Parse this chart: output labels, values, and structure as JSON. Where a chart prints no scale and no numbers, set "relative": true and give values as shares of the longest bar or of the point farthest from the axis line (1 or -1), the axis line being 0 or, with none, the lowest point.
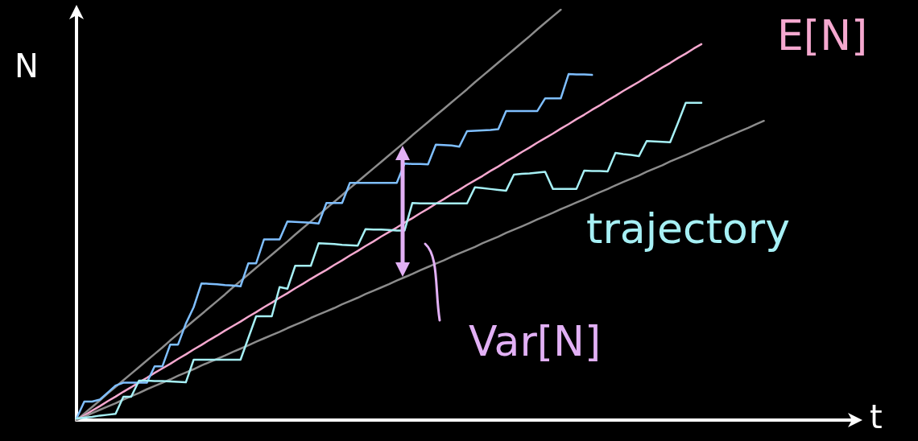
{
  "chart_data": {
    "type": "line",
    "relative": true,
    "xlabel": "t",
    "ylabel": "N",
    "marker": "none",
    "annotations": [
      "Var[N]"
    ],
    "categories": [
      null,
      null,
      null,
      null,
      null,
      null,
      null,
      null,
      null,
      null,
      null,
      null,
      null,
      null,
      null,
      null,
      null,
      null,
      null,
      null,
      null,
      null,
      null,
      null,
      null,
      null,
      null,
      null,
      null,
      null,
      null,
      null,
      null,
      null,
      null,
      null,
      null,
      null,
      null,
      null,
      null,
      null,
      null,
      null,
      null,
      null,
      null,
      null,
      null,
      null,
      null,
      null,
      null,
      null,
      null,
      null,
      null,
      null,
      null,
      null,
      null,
      null,
      null,
      null,
      null,
      null,
      null,
      null,
      null,
      null,
      null,
      null,
      null,
      null,
      null,
      null,
      null,
      null,
      null,
      null,
      null,
      null,
      null,
      null,
      null,
      null,
      null,
      null,
      null,
      null,
      null,
      null,
      null,
      null,
      null,
      null,
      null,
      null,
      null,
      null,
      null
    ],
    "series": [
      {
        "color": "#8c8c8c",
        "values": [
          0,
          0.016,
          0.032,
          0.048,
          0.065,
          0.081,
          0.097,
          0.113,
          0.129,
          0.145,
          0.161,
          0.177,
          0.194,
          0.21,
          0.226,
          0.242,
          0.258,
          0.274,
          0.29,
          0.306,
          0.323,
          0.339,
          0.355,
          0.371,
          0.387,
          0.403,
          0.419,
          0.435,
          0.452,
          0.468,
          0.484,
          0.5,
          0.516,
          0.532,
          0.548,
          0.565,
          0.581,
          0.597,
          0.613,
          0.629,
          0.645,
          0.661,
          0.677,
          0.694,
          0.71,
          0.726,
          0.742,
          0.758,
          0.774,
          0.79,
          0.806,
          0.823,
          0.839,
          0.855,
          0.871,
          0.887,
          0.903,
          0.919,
          0.935,
          0.952,
          0.968,
          0.984,
          1,
          null,
          null,
          null,
          null,
          null,
          null,
          null,
          null,
          null,
          null,
          null,
          null,
          null,
          null,
          null,
          null,
          null,
          null,
          null,
          null,
          null,
          null,
          null,
          null,
          null,
          null,
          null,
          null,
          null,
          null,
          null,
          null,
          null,
          null,
          null,
          null,
          null,
          null
        ]
      },
      {
        "name": "E[N]",
        "color": "#f5a8cf",
        "values": [
          0,
          0.011,
          0.023,
          0.034,
          0.046,
          0.057,
          0.069,
          0.08,
          0.092,
          0.103,
          0.115,
          0.126,
          0.137,
          0.149,
          0.16,
          0.172,
          0.183,
          0.195,
          0.206,
          0.218,
          0.229,
          0.24,
          0.252,
          0.263,
          0.275,
          0.286,
          0.298,
          0.309,
          0.321,
          0.332,
          0.344,
          0.355,
          0.366,
          0.378,
          0.389,
          0.401,
          0.412,
          0.424,
          0.435,
          0.447,
          0.458,
          0.469,
          0.481,
          0.492,
          0.504,
          0.515,
          0.527,
          0.538,
          0.55,
          0.561,
          0.573,
          0.584,
          0.595,
          0.607,
          0.618,
          0.63,
          0.641,
          0.653,
          0.664,
          0.676,
          0.687,
          0.698,
          0.71,
          0.721,
          0.733,
          0.744,
          0.756,
          0.767,
          0.779,
          0.79,
          0.802,
          0.813,
          0.824,
          0.836,
          0.847,
          0.859,
          0.87,
          0.882,
          0.893,
          0.905,
          0.916,
          null,
          null,
          null,
          null,
          null,
          null,
          null,
          null,
          null,
          null,
          null,
          null,
          null,
          null,
          null,
          null,
          null,
          null,
          null,
          null
        ]
      },
      {
        "color": "#8c8c8c",
        "values": [
          0,
          0.008,
          0.017,
          0.025,
          0.033,
          0.041,
          0.05,
          0.058,
          0.066,
          0.075,
          0.083,
          0.091,
          0.099,
          0.108,
          0.116,
          0.124,
          0.133,
          0.141,
          0.149,
          0.157,
          0.166,
          0.174,
          0.182,
          0.191,
          0.199,
          0.207,
          0.215,
          0.224,
          0.232,
          0.24,
          0.249,
          0.257,
          0.265,
          0.273,
          0.282,
          0.29,
          0.298,
          0.307,
          0.315,
          0.323,
          0.331,
          0.34,
          0.348,
          0.356,
          0.365,
          0.373,
          0.381,
          0.389,
          0.398,
          0.406,
          0.414,
          0.422,
          0.431,
          0.439,
          0.447,
          0.456,
          0.464,
          0.472,
          0.48,
          0.489,
          0.497,
          0.505,
          0.514,
          0.522,
          0.53,
          0.538,
          0.547,
          0.555,
          0.563,
          0.572,
          0.58,
          0.588,
          0.596,
          0.605,
          0.613,
          0.621,
          0.63,
          0.638,
          0.646,
          0.654,
          0.663,
          0.671,
          0.679,
          0.688,
          0.696,
          0.704,
          0.712,
          0.721,
          0.729,
          null,
          null,
          null,
          null,
          null,
          null,
          null,
          null,
          null,
          null,
          null,
          null
        ]
      },
      {
        "color": "#7fbfff",
        "values": [
          0.004,
          0.045,
          0.045,
          0.05,
          0.067,
          0.084,
          0.091,
          0.091,
          0.091,
          0.091,
          0.131,
          0.131,
          0.184,
          0.184,
          0.235,
          0.275,
          0.333,
          0.332,
          0.331,
          0.329,
          0.328,
          0.326,
          0.382,
          0.382,
          0.44,
          0.44,
          0.44,
          0.484,
          0.483,
          0.482,
          0.481,
          0.479,
          0.529,
          0.529,
          0.529,
          0.578,
          0.578,
          0.578,
          0.578,
          0.578,
          0.578,
          0.578,
          0.625,
          0.624,
          0.624,
          0.623,
          0.671,
          0.67,
          0.669,
          0.666,
          0.704,
          0.705,
          0.706,
          0.707,
          0.709,
          0.753,
          0.753,
          0.753,
          0.753,
          0.753,
          0.784,
          0.784,
          0.784,
          0.843,
          0.842,
          0.842,
          0.841,
          null,
          null,
          null,
          null,
          null,
          null,
          null,
          null,
          null,
          null,
          null,
          null,
          null,
          null,
          null,
          null,
          null,
          null,
          null,
          null,
          null,
          null,
          null,
          null,
          null,
          null,
          null,
          null,
          null,
          null,
          null,
          null,
          null,
          null
        ]
      },
      {
        "name": "trajectory",
        "color": "#a6f0f5",
        "values": [
          0.004,
          0.006,
          0.008,
          0.011,
          0.013,
          0.015,
          0.057,
          0.057,
          0.096,
          0.096,
          0.095,
          0.095,
          0.094,
          0.093,
          0.092,
          0.147,
          0.147,
          0.147,
          0.147,
          0.147,
          0.147,
          0.147,
          0.2,
          0.253,
          0.253,
          0.253,
          0.324,
          0.32,
          0.376,
          0.376,
          0.376,
          0.431,
          0.43,
          0.429,
          0.427,
          0.426,
          0.425,
          0.465,
          0.464,
          0.464,
          0.463,
          0.462,
          0.462,
          0.529,
          0.528,
          0.528,
          0.528,
          0.528,
          0.528,
          0.528,
          0.528,
          0.567,
          0.565,
          0.563,
          0.561,
          0.559,
          0.598,
          0.6,
          0.601,
          0.603,
          0.605,
          0.563,
          0.563,
          0.563,
          0.563,
          0.608,
          0.607,
          0.607,
          0.606,
          0.651,
          0.648,
          0.646,
          0.643,
          0.68,
          0.679,
          0.678,
          0.677,
          0.724,
          0.773,
          0.773,
          0.773,
          null,
          null,
          null,
          null,
          null,
          null,
          null,
          null,
          null,
          null,
          null,
          null,
          null,
          null,
          null,
          null,
          null,
          null,
          null,
          null
        ]
      }
    ]
  }
}
